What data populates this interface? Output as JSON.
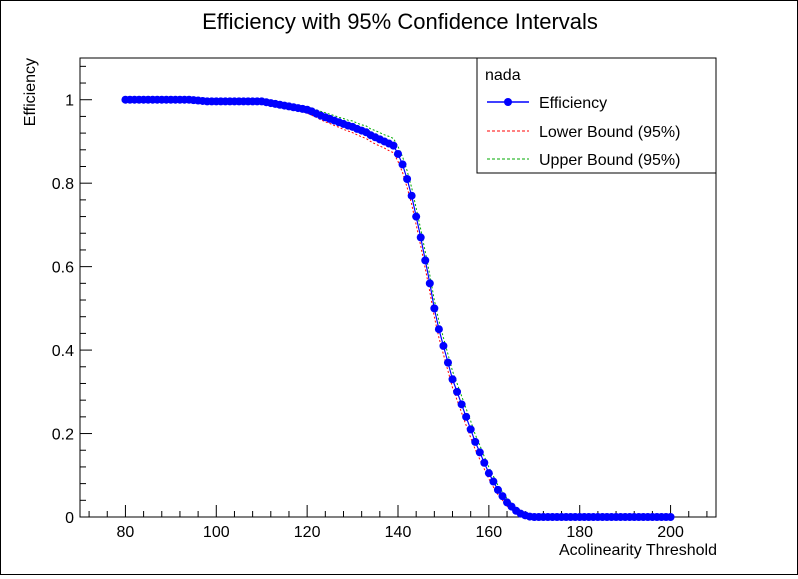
{
  "chart_data": {
    "type": "line",
    "title": "Efficiency with 95% Confidence Intervals",
    "xlabel": "Acolinearity Threshold",
    "ylabel": "Efficiency",
    "xlim": [
      70,
      210
    ],
    "ylim": [
      0,
      1.1
    ],
    "x_ticks": [
      80,
      100,
      120,
      140,
      160,
      180,
      200
    ],
    "y_ticks": [
      0,
      0.2,
      0.4,
      0.6,
      0.8,
      1
    ],
    "x_tick_labels": [
      "80",
      "100",
      "120",
      "140",
      "160",
      "180",
      "200"
    ],
    "y_tick_labels": [
      "0",
      "0.2",
      "0.4",
      "0.6",
      "0.8",
      "1"
    ],
    "grid": false,
    "legend_position": "top-right",
    "legend": {
      "header": "nada",
      "entries": [
        "Efficiency",
        "Lower Bound (95%)",
        "Upper Bound (95%)"
      ]
    },
    "colors": {
      "efficiency": "#0000ff",
      "lower": "#ff0000",
      "upper": "#00aa00"
    },
    "x": [
      80,
      81,
      82,
      83,
      84,
      85,
      86,
      87,
      88,
      89,
      90,
      91,
      92,
      93,
      94,
      95,
      96,
      97,
      98,
      99,
      100,
      101,
      102,
      103,
      104,
      105,
      106,
      107,
      108,
      109,
      110,
      111,
      112,
      113,
      114,
      115,
      116,
      117,
      118,
      119,
      120,
      121,
      122,
      123,
      124,
      125,
      126,
      127,
      128,
      129,
      130,
      131,
      132,
      133,
      134,
      135,
      136,
      137,
      138,
      139,
      140,
      141,
      142,
      143,
      144,
      145,
      146,
      147,
      148,
      149,
      150,
      151,
      152,
      153,
      154,
      155,
      156,
      157,
      158,
      159,
      160,
      161,
      162,
      163,
      164,
      165,
      166,
      167,
      168,
      169,
      170,
      171,
      172,
      173,
      174,
      175,
      176,
      177,
      178,
      179,
      180,
      181,
      182,
      183,
      184,
      185,
      186,
      187,
      188,
      189,
      190,
      191,
      192,
      193,
      194,
      195,
      196,
      197,
      198,
      199,
      200
    ],
    "series": [
      {
        "name": "Efficiency",
        "values": [
          1.0,
          1.0,
          1.0,
          1.0,
          1.0,
          1.0,
          1.0,
          1.0,
          1.0,
          1.0,
          1.0,
          1.0,
          1.0,
          1.0,
          1.0,
          0.999,
          0.998,
          0.997,
          0.996,
          0.996,
          0.996,
          0.996,
          0.996,
          0.996,
          0.996,
          0.996,
          0.996,
          0.996,
          0.996,
          0.996,
          0.996,
          0.994,
          0.992,
          0.99,
          0.988,
          0.986,
          0.984,
          0.982,
          0.98,
          0.978,
          0.976,
          0.972,
          0.967,
          0.962,
          0.958,
          0.954,
          0.95,
          0.946,
          0.942,
          0.938,
          0.935,
          0.93,
          0.926,
          0.922,
          0.915,
          0.91,
          0.905,
          0.9,
          0.895,
          0.89,
          0.87,
          0.845,
          0.81,
          0.77,
          0.72,
          0.67,
          0.615,
          0.56,
          0.5,
          0.45,
          0.41,
          0.37,
          0.33,
          0.3,
          0.27,
          0.24,
          0.21,
          0.18,
          0.155,
          0.13,
          0.105,
          0.085,
          0.065,
          0.05,
          0.035,
          0.025,
          0.015,
          0.008,
          0.004,
          0.001,
          0.0,
          0.0,
          0.0,
          0.0,
          0.0,
          0.0,
          0.0,
          0.0,
          0.0,
          0.0,
          0.0,
          0.0,
          0.0,
          0.0,
          0.0,
          0.0,
          0.0,
          0.0,
          0.0,
          0.0,
          0.0,
          0.0,
          0.0,
          0.0,
          0.0,
          0.0,
          0.0,
          0.0,
          0.0,
          0.0,
          0.0
        ]
      },
      {
        "name": "Lower Bound (95%)",
        "values": [
          1.0,
          1.0,
          1.0,
          1.0,
          1.0,
          1.0,
          1.0,
          1.0,
          1.0,
          1.0,
          1.0,
          1.0,
          1.0,
          1.0,
          1.0,
          0.997,
          0.996,
          0.995,
          0.994,
          0.994,
          0.994,
          0.994,
          0.994,
          0.994,
          0.994,
          0.994,
          0.994,
          0.994,
          0.994,
          0.994,
          0.994,
          0.991,
          0.988,
          0.985,
          0.983,
          0.981,
          0.978,
          0.975,
          0.973,
          0.971,
          0.968,
          0.963,
          0.958,
          0.952,
          0.947,
          0.943,
          0.938,
          0.934,
          0.929,
          0.925,
          0.921,
          0.916,
          0.911,
          0.907,
          0.9,
          0.894,
          0.889,
          0.884,
          0.878,
          0.873,
          0.852,
          0.826,
          0.79,
          0.75,
          0.7,
          0.65,
          0.595,
          0.54,
          0.48,
          0.43,
          0.39,
          0.35,
          0.31,
          0.28,
          0.25,
          0.22,
          0.19,
          0.162,
          0.138,
          0.115,
          0.091,
          0.072,
          0.054,
          0.04,
          0.026,
          0.017,
          0.009,
          0.004,
          0.001,
          0.0,
          0.0,
          0.0,
          0.0,
          0.0,
          0.0,
          0.0,
          0.0,
          0.0,
          0.0,
          0.0,
          0.0,
          0.0,
          0.0,
          0.0,
          0.0,
          0.0,
          0.0,
          0.0,
          0.0,
          0.0,
          0.0,
          0.0,
          0.0,
          0.0,
          0.0,
          0.0,
          0.0,
          0.0,
          0.0,
          0.0,
          0.0
        ]
      },
      {
        "name": "Upper Bound (95%)",
        "values": [
          1.0,
          1.0,
          1.0,
          1.0,
          1.0,
          1.0,
          1.0,
          1.0,
          1.0,
          1.0,
          1.0,
          1.0,
          1.0,
          1.0,
          1.0,
          1.0,
          1.0,
          0.999,
          0.998,
          0.998,
          0.998,
          0.998,
          0.998,
          0.998,
          0.998,
          0.998,
          0.998,
          0.998,
          0.998,
          0.998,
          0.998,
          0.997,
          0.996,
          0.994,
          0.993,
          0.991,
          0.99,
          0.988,
          0.987,
          0.985,
          0.983,
          0.98,
          0.976,
          0.972,
          0.969,
          0.965,
          0.962,
          0.958,
          0.955,
          0.951,
          0.949,
          0.944,
          0.94,
          0.937,
          0.93,
          0.926,
          0.921,
          0.916,
          0.912,
          0.907,
          0.888,
          0.864,
          0.83,
          0.79,
          0.74,
          0.69,
          0.635,
          0.58,
          0.52,
          0.47,
          0.43,
          0.39,
          0.35,
          0.32,
          0.29,
          0.26,
          0.23,
          0.198,
          0.172,
          0.145,
          0.119,
          0.098,
          0.076,
          0.06,
          0.044,
          0.033,
          0.021,
          0.012,
          0.007,
          0.003,
          0.001,
          0.0,
          0.0,
          0.0,
          0.0,
          0.0,
          0.0,
          0.0,
          0.0,
          0.0,
          0.0,
          0.0,
          0.0,
          0.0,
          0.0,
          0.0,
          0.0,
          0.0,
          0.0,
          0.0,
          0.0,
          0.0,
          0.0,
          0.0,
          0.0,
          0.0,
          0.0,
          0.0,
          0.0,
          0.0,
          0.0
        ]
      }
    ]
  }
}
